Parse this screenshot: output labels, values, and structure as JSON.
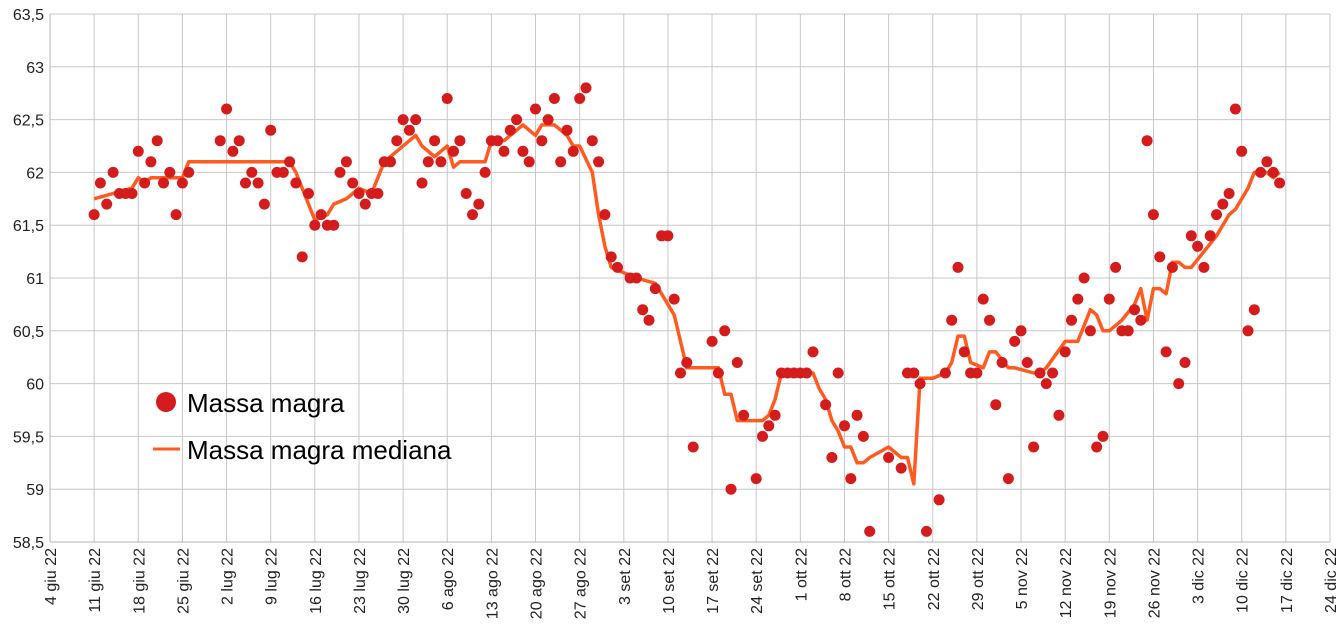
{
  "chart_data": {
    "type": "scatter",
    "title": "",
    "xlabel": "",
    "ylabel": "",
    "x_unit": "days since 4 giu 22",
    "xlim": [
      0,
      203
    ],
    "ylim": [
      58.5,
      63.5
    ],
    "grid": true,
    "legend_placement": "bottom-left",
    "y_ticks": [
      "58,5",
      "59",
      "59,5",
      "60",
      "60,5",
      "61",
      "61,5",
      "62",
      "62,5",
      "63",
      "63,5"
    ],
    "y_tick_values": [
      58.5,
      59,
      59.5,
      60,
      60.5,
      61,
      61.5,
      62,
      62.5,
      63,
      63.5
    ],
    "x_ticks": [
      "4 giu 22",
      "11 giu 22",
      "18 giu 22",
      "25 giu 22",
      "2 lug 22",
      "9 lug 22",
      "16 lug 22",
      "23 lug 22",
      "30 lug 22",
      "6 ago 22",
      "13 ago 22",
      "20 ago 22",
      "27 ago 22",
      "3 set 22",
      "10 set 22",
      "17 set 22",
      "24 set 22",
      "1 ott 22",
      "8 ott 22",
      "15 ott 22",
      "22 ott 22",
      "29 ott 22",
      "5 nov 22",
      "12 nov 22",
      "19 nov 22",
      "26 nov 22",
      "3 dic 22",
      "10 dic 22",
      "17 dic 22",
      "24 dic 22"
    ],
    "series": [
      {
        "name": "Massa magra",
        "kind": "scatter",
        "color": "#d41c1c",
        "points": [
          [
            7,
            61.6
          ],
          [
            8,
            61.9
          ],
          [
            9,
            61.7
          ],
          [
            10,
            62.0
          ],
          [
            11,
            61.8
          ],
          [
            12,
            61.8
          ],
          [
            13,
            61.8
          ],
          [
            14,
            62.2
          ],
          [
            15,
            61.9
          ],
          [
            16,
            62.1
          ],
          [
            17,
            62.3
          ],
          [
            18,
            61.9
          ],
          [
            19,
            62.0
          ],
          [
            20,
            61.6
          ],
          [
            21,
            61.9
          ],
          [
            22,
            62.0
          ],
          [
            27,
            62.3
          ],
          [
            28,
            62.6
          ],
          [
            29,
            62.2
          ],
          [
            30,
            62.3
          ],
          [
            31,
            61.9
          ],
          [
            32,
            62.0
          ],
          [
            33,
            61.9
          ],
          [
            34,
            61.7
          ],
          [
            35,
            62.4
          ],
          [
            36,
            62.0
          ],
          [
            37,
            62.0
          ],
          [
            38,
            62.1
          ],
          [
            39,
            61.9
          ],
          [
            40,
            61.2
          ],
          [
            41,
            61.8
          ],
          [
            42,
            61.5
          ],
          [
            43,
            61.6
          ],
          [
            44,
            61.5
          ],
          [
            45,
            61.5
          ],
          [
            46,
            62.0
          ],
          [
            47,
            62.1
          ],
          [
            48,
            61.9
          ],
          [
            49,
            61.8
          ],
          [
            50,
            61.7
          ],
          [
            51,
            61.8
          ],
          [
            52,
            61.8
          ],
          [
            53,
            62.1
          ],
          [
            54,
            62.1
          ],
          [
            55,
            62.3
          ],
          [
            56,
            62.5
          ],
          [
            57,
            62.4
          ],
          [
            58,
            62.5
          ],
          [
            59,
            61.9
          ],
          [
            60,
            62.1
          ],
          [
            61,
            62.3
          ],
          [
            62,
            62.1
          ],
          [
            63,
            62.7
          ],
          [
            64,
            62.2
          ],
          [
            65,
            62.3
          ],
          [
            66,
            61.8
          ],
          [
            67,
            61.6
          ],
          [
            68,
            61.7
          ],
          [
            69,
            62.0
          ],
          [
            70,
            62.3
          ],
          [
            71,
            62.3
          ],
          [
            72,
            62.2
          ],
          [
            73,
            62.4
          ],
          [
            74,
            62.5
          ],
          [
            75,
            62.2
          ],
          [
            76,
            62.1
          ],
          [
            77,
            62.6
          ],
          [
            78,
            62.3
          ],
          [
            79,
            62.5
          ],
          [
            80,
            62.7
          ],
          [
            81,
            62.1
          ],
          [
            82,
            62.4
          ],
          [
            83,
            62.2
          ],
          [
            84,
            62.7
          ],
          [
            85,
            62.8
          ],
          [
            86,
            62.3
          ],
          [
            87,
            62.1
          ],
          [
            88,
            61.6
          ],
          [
            89,
            61.2
          ],
          [
            90,
            61.1
          ],
          [
            92,
            61.0
          ],
          [
            93,
            61.0
          ],
          [
            94,
            60.7
          ],
          [
            95,
            60.6
          ],
          [
            96,
            60.9
          ],
          [
            97,
            61.4
          ],
          [
            98,
            61.4
          ],
          [
            99,
            60.8
          ],
          [
            100,
            60.1
          ],
          [
            101,
            60.2
          ],
          [
            102,
            59.4
          ],
          [
            105,
            60.4
          ],
          [
            106,
            60.1
          ],
          [
            107,
            60.5
          ],
          [
            108,
            59.0
          ],
          [
            109,
            60.2
          ],
          [
            110,
            59.7
          ],
          [
            112,
            59.1
          ],
          [
            113,
            59.5
          ],
          [
            114,
            59.6
          ],
          [
            115,
            59.7
          ],
          [
            116,
            60.1
          ],
          [
            117,
            60.1
          ],
          [
            118,
            60.1
          ],
          [
            119,
            60.1
          ],
          [
            120,
            60.1
          ],
          [
            121,
            60.3
          ],
          [
            123,
            59.8
          ],
          [
            124,
            59.3
          ],
          [
            125,
            60.1
          ],
          [
            126,
            59.6
          ],
          [
            127,
            59.1
          ],
          [
            128,
            59.7
          ],
          [
            129,
            59.5
          ],
          [
            130,
            58.6
          ],
          [
            133,
            59.3
          ],
          [
            135,
            59.2
          ],
          [
            136,
            60.1
          ],
          [
            137,
            60.1
          ],
          [
            138,
            60.0
          ],
          [
            139,
            58.6
          ],
          [
            141,
            58.9
          ],
          [
            142,
            60.1
          ],
          [
            143,
            60.6
          ],
          [
            144,
            61.1
          ],
          [
            145,
            60.3
          ],
          [
            146,
            60.1
          ],
          [
            147,
            60.1
          ],
          [
            148,
            60.8
          ],
          [
            149,
            60.6
          ],
          [
            150,
            59.8
          ],
          [
            151,
            60.2
          ],
          [
            152,
            59.1
          ],
          [
            153,
            60.4
          ],
          [
            154,
            60.5
          ],
          [
            155,
            60.2
          ],
          [
            156,
            59.4
          ],
          [
            157,
            60.1
          ],
          [
            158,
            60.0
          ],
          [
            159,
            60.1
          ],
          [
            160,
            59.7
          ],
          [
            161,
            60.3
          ],
          [
            162,
            60.6
          ],
          [
            163,
            60.8
          ],
          [
            164,
            61.0
          ],
          [
            165,
            60.5
          ],
          [
            166,
            59.4
          ],
          [
            167,
            59.5
          ],
          [
            168,
            60.8
          ],
          [
            169,
            61.1
          ],
          [
            170,
            60.5
          ],
          [
            171,
            60.5
          ],
          [
            172,
            60.7
          ],
          [
            173,
            60.6
          ],
          [
            174,
            62.3
          ],
          [
            175,
            61.6
          ],
          [
            176,
            61.2
          ],
          [
            177,
            60.3
          ],
          [
            178,
            61.1
          ],
          [
            179,
            60.0
          ],
          [
            180,
            60.2
          ],
          [
            181,
            61.4
          ],
          [
            182,
            61.3
          ],
          [
            183,
            61.1
          ],
          [
            184,
            61.4
          ],
          [
            185,
            61.6
          ],
          [
            186,
            61.7
          ],
          [
            187,
            61.8
          ],
          [
            188,
            62.6
          ],
          [
            189,
            62.2
          ],
          [
            190,
            60.5
          ],
          [
            191,
            60.7
          ],
          [
            192,
            62.0
          ],
          [
            193,
            62.1
          ],
          [
            194,
            62.0
          ],
          [
            195,
            61.9
          ]
        ]
      },
      {
        "name": "Massa magra mediana",
        "kind": "line",
        "color": "#ff5a1f",
        "points": [
          [
            7,
            61.75
          ],
          [
            10,
            61.8
          ],
          [
            13,
            61.85
          ],
          [
            14,
            61.95
          ],
          [
            15,
            61.9
          ],
          [
            16,
            61.95
          ],
          [
            21,
            61.95
          ],
          [
            22,
            62.1
          ],
          [
            38,
            62.1
          ],
          [
            39,
            62.0
          ],
          [
            41,
            61.7
          ],
          [
            42,
            61.55
          ],
          [
            44,
            61.6
          ],
          [
            45,
            61.7
          ],
          [
            47,
            61.75
          ],
          [
            49,
            61.85
          ],
          [
            51,
            61.8
          ],
          [
            53,
            62.1
          ],
          [
            55,
            62.2
          ],
          [
            57,
            62.3
          ],
          [
            58,
            62.35
          ],
          [
            59,
            62.25
          ],
          [
            61,
            62.15
          ],
          [
            62,
            62.2
          ],
          [
            63,
            62.25
          ],
          [
            64,
            62.05
          ],
          [
            65,
            62.1
          ],
          [
            69,
            62.1
          ],
          [
            70,
            62.3
          ],
          [
            72,
            62.3
          ],
          [
            74,
            62.4
          ],
          [
            75,
            62.45
          ],
          [
            77,
            62.35
          ],
          [
            78,
            62.45
          ],
          [
            80,
            62.45
          ],
          [
            82,
            62.35
          ],
          [
            83,
            62.25
          ],
          [
            84,
            62.25
          ],
          [
            86,
            62.0
          ],
          [
            87,
            61.6
          ],
          [
            88,
            61.3
          ],
          [
            89,
            61.1
          ],
          [
            91,
            61.05
          ],
          [
            93,
            61.0
          ],
          [
            96,
            60.95
          ],
          [
            98,
            60.75
          ],
          [
            99,
            60.65
          ],
          [
            100,
            60.4
          ],
          [
            101,
            60.15
          ],
          [
            106,
            60.15
          ],
          [
            107,
            59.9
          ],
          [
            108,
            59.9
          ],
          [
            109,
            59.65
          ],
          [
            113,
            59.65
          ],
          [
            114,
            59.7
          ],
          [
            115,
            59.85
          ],
          [
            116,
            60.1
          ],
          [
            121,
            60.1
          ],
          [
            122,
            59.95
          ],
          [
            123,
            59.85
          ],
          [
            124,
            59.65
          ],
          [
            125,
            59.55
          ],
          [
            126,
            59.4
          ],
          [
            127,
            59.4
          ],
          [
            128,
            59.25
          ],
          [
            129,
            59.25
          ],
          [
            130,
            59.3
          ],
          [
            133,
            59.4
          ],
          [
            135,
            59.3
          ],
          [
            136,
            59.3
          ],
          [
            137,
            59.05
          ],
          [
            138,
            60.05
          ],
          [
            140,
            60.05
          ],
          [
            142,
            60.1
          ],
          [
            143,
            60.2
          ],
          [
            144,
            60.45
          ],
          [
            145,
            60.45
          ],
          [
            146,
            60.2
          ],
          [
            148,
            60.15
          ],
          [
            149,
            60.3
          ],
          [
            150,
            60.3
          ],
          [
            152,
            60.15
          ],
          [
            153,
            60.15
          ],
          [
            156,
            60.1
          ],
          [
            157,
            60.1
          ],
          [
            158,
            60.15
          ],
          [
            161,
            60.4
          ],
          [
            163,
            60.4
          ],
          [
            164,
            60.55
          ],
          [
            165,
            60.7
          ],
          [
            166,
            60.65
          ],
          [
            167,
            60.5
          ],
          [
            168,
            60.5
          ],
          [
            170,
            60.6
          ],
          [
            172,
            60.75
          ],
          [
            173,
            60.9
          ],
          [
            174,
            60.6
          ],
          [
            175,
            60.9
          ],
          [
            176,
            60.9
          ],
          [
            177,
            60.85
          ],
          [
            178,
            61.15
          ],
          [
            179,
            61.15
          ],
          [
            180,
            61.1
          ],
          [
            181,
            61.1
          ],
          [
            183,
            61.25
          ],
          [
            185,
            61.4
          ],
          [
            187,
            61.6
          ],
          [
            188,
            61.65
          ],
          [
            190,
            61.85
          ],
          [
            191,
            62.0
          ],
          [
            193,
            62.0
          ],
          [
            194,
            61.95
          ],
          [
            195,
            62.0
          ]
        ]
      }
    ]
  }
}
